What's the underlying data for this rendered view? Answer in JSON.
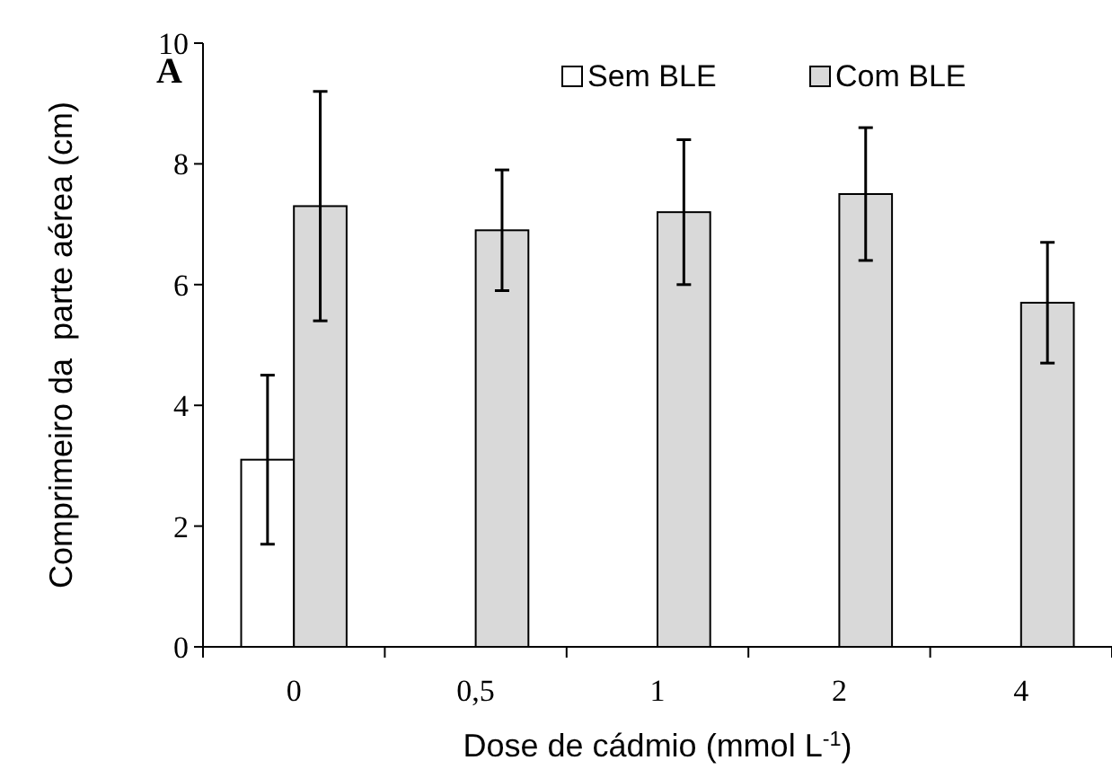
{
  "chart_data": {
    "type": "bar",
    "ylabel": "Comprimeiro da  parte aérea (cm)",
    "xlabel": "Dose de cádmio (mmol L$^{-1}$)",
    "annotations": [
      "A"
    ],
    "categories": [
      "0",
      "0,5",
      "1",
      "2",
      "4"
    ],
    "series": [
      {
        "name": "Sem BLE",
        "color": "#ffffff",
        "values": [
          3.1,
          null,
          null,
          0,
          0
        ],
        "errors": [
          1.4,
          null,
          null,
          null,
          null
        ]
      },
      {
        "name": "Com BLE",
        "color": "#d9d9d9",
        "values": [
          7.3,
          6.9,
          7.2,
          7.5,
          5.7
        ],
        "errors": [
          1.9,
          1.0,
          1.2,
          1.1,
          1.0
        ]
      }
    ],
    "ylim": [
      0,
      10
    ],
    "yticks": [
      0,
      2,
      4,
      6,
      8,
      10
    ],
    "grid": false,
    "legend": "top right"
  }
}
